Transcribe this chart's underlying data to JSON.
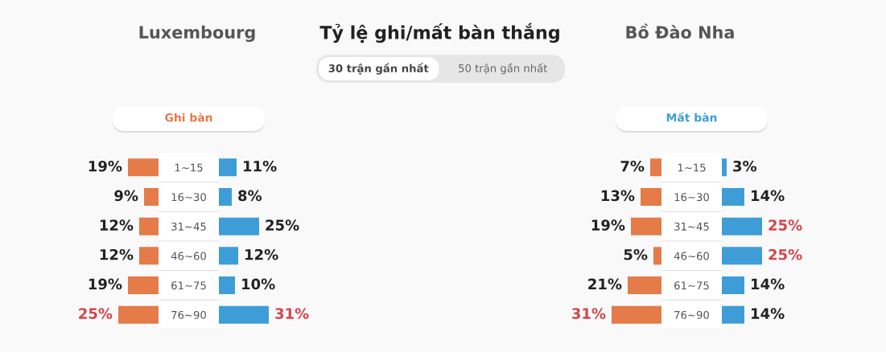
{
  "chart_data": [
    {
      "type": "other",
      "title": "Tỷ lệ ghi/mất bàn thắng",
      "annotations": [
        "30 trận gần nhất",
        "50 trận gần nhất"
      ]
    },
    {
      "type": "bar",
      "orientation": "horizontal",
      "title": "Luxembourg",
      "subtitle": "Ghi bàn",
      "categories": [
        "1~15",
        "16~30",
        "31~45",
        "46~60",
        "61~75",
        "76~90"
      ],
      "tick_labels": "y",
      "color": "#e47b49",
      "values": [
        19,
        9,
        12,
        12,
        19,
        25
      ],
      "value_labels": [
        "19%",
        "9%",
        "12%",
        "12%",
        "19%",
        "25%"
      ]
    },
    {
      "type": "bar",
      "orientation": "horizontal",
      "categories": [
        null,
        null,
        null,
        null,
        null,
        null
      ],
      "color": "#3e9dd7",
      "values": [
        11,
        8,
        25,
        12,
        10,
        31
      ],
      "value_labels": [
        "11%",
        "8%",
        "25%",
        "12%",
        "10%",
        "31%"
      ]
    },
    {
      "type": "bar",
      "orientation": "horizontal",
      "categories": [
        "1~15",
        "16~30",
        "31~45",
        "46~60",
        "61~75",
        "76~90"
      ],
      "tick_labels": "y",
      "color": "#e47b49",
      "values": [
        7,
        13,
        19,
        5,
        21,
        31
      ],
      "value_labels": [
        "7%",
        "13%",
        "19%",
        "5%",
        "21%",
        "31%"
      ]
    },
    {
      "type": "bar",
      "orientation": "horizontal",
      "title": "Bồ Đào Nha",
      "subtitle": "Mất bàn",
      "categories": [
        null,
        null,
        null,
        null,
        null,
        null
      ],
      "color": "#3e9dd7",
      "values": [
        3,
        14,
        25,
        25,
        14,
        14
      ],
      "value_labels": [
        "3%",
        "14%",
        "25%",
        "25%",
        "14%",
        "14%"
      ]
    }
  ]
}
